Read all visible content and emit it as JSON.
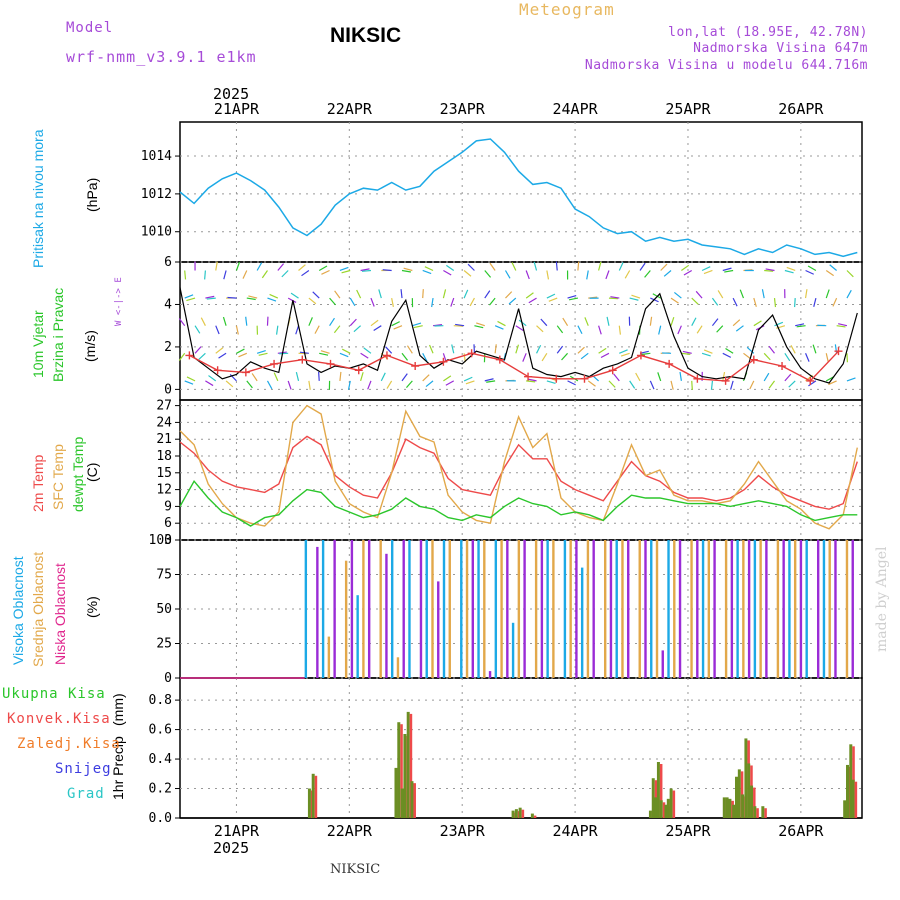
{
  "header": {
    "model_label": "Model",
    "model_name": "wrf-nmm_v3.9.1 e1km",
    "station_title": "NIKSIC",
    "meteogram_label": "Meteogram",
    "lonlat": "lon,lat (18.95E, 42.78N)",
    "altitude": "Nadmorska Visina 647m",
    "model_altitude": "Nadmorska Visina u modelu 644.716m"
  },
  "footer": {
    "station": "NIKSIC",
    "watermark": "made by Angel"
  },
  "chart_data": [
    {
      "type": "line",
      "panel": "pressure",
      "ylabel_main": "Pritisak na nivou mora",
      "unit": "(hPa)",
      "ylim": [
        1008.4,
        1015.8
      ],
      "yticks": [
        1010,
        1012,
        1014
      ],
      "color": "#1ca9e6",
      "x_hours": [
        0,
        3,
        6,
        9,
        12,
        15,
        18,
        21,
        24,
        27,
        30,
        33,
        36,
        39,
        42,
        45,
        48,
        51,
        54,
        57,
        60,
        63,
        66,
        69,
        72,
        75,
        78,
        81,
        84,
        87,
        90,
        93,
        96,
        99,
        102,
        105,
        108,
        111,
        114,
        117,
        120,
        123,
        126,
        129,
        132,
        135,
        138,
        141,
        144
      ],
      "values": [
        1012.1,
        1011.5,
        1012.3,
        1012.8,
        1013.1,
        1012.7,
        1012.2,
        1011.3,
        1010.2,
        1009.8,
        1010.4,
        1011.4,
        1012.0,
        1012.3,
        1012.2,
        1012.6,
        1012.2,
        1012.4,
        1013.2,
        1013.7,
        1014.2,
        1014.8,
        1014.9,
        1014.2,
        1013.2,
        1012.5,
        1012.6,
        1012.3,
        1011.2,
        1010.8,
        1010.2,
        1009.9,
        1010.0,
        1009.5,
        1009.7,
        1009.5,
        1009.6,
        1009.3,
        1009.2,
        1009.1,
        1008.8,
        1009.1,
        1008.9,
        1009.3,
        1009.1,
        1008.8,
        1008.9,
        1008.7,
        1008.9
      ]
    },
    {
      "type": "line",
      "panel": "wind",
      "ylabel_main": "10m Vjetar",
      "ylabel_sub": "Brzina i Pravac",
      "unit": "(m/s)",
      "compass": "W <-|-> E",
      "ylim": [
        -0.5,
        6
      ],
      "yticks": [
        0,
        2,
        4,
        6
      ],
      "series": [
        {
          "color": "#000000",
          "x_hours": [
            0,
            3,
            6,
            9,
            12,
            15,
            18,
            21,
            24,
            27,
            30,
            33,
            36,
            39,
            42,
            45,
            48,
            51,
            54,
            57,
            60,
            63,
            66,
            69,
            72,
            75,
            78,
            81,
            84,
            87,
            90,
            93,
            96,
            99,
            102,
            105,
            108,
            111,
            114,
            117,
            120,
            123,
            126,
            129,
            132,
            135,
            138,
            141,
            144
          ],
          "values": [
            4.8,
            1.5,
            1.0,
            0.5,
            0.7,
            1.3,
            1.0,
            0.8,
            4.2,
            1.2,
            0.8,
            1.1,
            1.0,
            1.2,
            0.9,
            3.2,
            4.2,
            1.6,
            1.0,
            1.4,
            1.2,
            1.8,
            1.6,
            1.4,
            3.8,
            1.0,
            0.7,
            0.6,
            0.8,
            0.6,
            1.0,
            1.2,
            1.5,
            3.8,
            4.5,
            2.5,
            1.0,
            0.6,
            0.5,
            0.6,
            0.5,
            2.8,
            3.5,
            2.0,
            1.0,
            0.5,
            0.3,
            1.2,
            3.6
          ]
        },
        {
          "color": "#e63c3c",
          "x_hours": [
            2,
            8,
            14,
            20,
            26,
            32,
            38,
            44,
            50,
            56,
            62,
            68,
            74,
            80,
            86,
            92,
            98,
            104,
            110,
            116,
            122,
            128,
            134,
            140
          ],
          "values": [
            1.6,
            0.9,
            0.8,
            1.2,
            1.4,
            1.2,
            0.9,
            1.6,
            1.1,
            1.3,
            1.7,
            1.4,
            0.6,
            0.5,
            0.5,
            0.9,
            1.6,
            1.2,
            0.5,
            0.4,
            1.4,
            1.1,
            0.4,
            1.8
          ]
        }
      ]
    },
    {
      "type": "line",
      "panel": "temperature",
      "ylabels": [
        "2m Temp",
        "SFC Temp",
        "dewpt Temp"
      ],
      "unit": "(C)",
      "ylim": [
        3,
        28
      ],
      "yticks": [
        3,
        6,
        9,
        12,
        15,
        18,
        21,
        24,
        27
      ],
      "x_hours": [
        0,
        3,
        6,
        9,
        12,
        15,
        18,
        21,
        24,
        27,
        30,
        33,
        36,
        39,
        42,
        45,
        48,
        51,
        54,
        57,
        60,
        63,
        66,
        69,
        72,
        75,
        78,
        81,
        84,
        87,
        90,
        93,
        96,
        99,
        102,
        105,
        108,
        111,
        114,
        117,
        120,
        123,
        126,
        129,
        132,
        135,
        138,
        141,
        144
      ],
      "series": [
        {
          "name": "2m Temp",
          "color": "#ee4a4a",
          "values": [
            20.5,
            18.5,
            15.5,
            13.5,
            12.5,
            12.0,
            11.5,
            13.0,
            19.5,
            21.5,
            20.0,
            14.5,
            12.5,
            11.0,
            10.5,
            15.0,
            21.0,
            19.5,
            18.5,
            14.0,
            12.0,
            11.5,
            11.0,
            16.0,
            20.0,
            17.5,
            17.5,
            13.5,
            12.0,
            11.0,
            10.0,
            13.5,
            17.0,
            14.5,
            13.5,
            11.5,
            10.5,
            10.5,
            10.0,
            10.5,
            12.0,
            14.5,
            12.5,
            11.0,
            10.0,
            9.0,
            8.5,
            9.5,
            17.0
          ]
        },
        {
          "name": "SFC Temp",
          "color": "#e2a84a",
          "values": [
            22.5,
            20.0,
            13.0,
            9.5,
            7.0,
            6.0,
            5.5,
            8.0,
            24.0,
            27.0,
            25.5,
            13.5,
            9.5,
            8.0,
            7.0,
            15.0,
            26.0,
            21.5,
            20.5,
            11.0,
            8.0,
            6.5,
            6.0,
            17.0,
            25.0,
            19.5,
            22.0,
            10.5,
            8.0,
            7.0,
            6.5,
            13.0,
            20.0,
            14.5,
            15.5,
            11.0,
            10.0,
            10.0,
            9.5,
            10.0,
            13.0,
            17.0,
            13.5,
            10.0,
            8.5,
            6.0,
            5.0,
            7.5,
            19.5
          ]
        },
        {
          "name": "dewpt Temp",
          "color": "#2bc62b",
          "values": [
            9.0,
            13.5,
            10.5,
            8.0,
            7.0,
            5.5,
            7.0,
            7.5,
            10.0,
            12.0,
            11.5,
            9.0,
            8.0,
            7.0,
            7.5,
            8.5,
            10.5,
            9.0,
            8.5,
            7.0,
            6.5,
            7.5,
            7.0,
            9.0,
            10.5,
            9.5,
            9.0,
            7.5,
            8.0,
            7.5,
            6.5,
            9.0,
            11.0,
            10.5,
            10.5,
            10.0,
            9.5,
            9.5,
            9.5,
            9.0,
            9.5,
            10.0,
            9.5,
            9.0,
            7.5,
            6.5,
            7.0,
            7.5,
            7.5
          ]
        }
      ]
    },
    {
      "type": "bar",
      "panel": "cloudiness",
      "ylabels": [
        "Visoka Oblacnost",
        "Srednja Oblacnost",
        "Niska Oblacnost"
      ],
      "unit": "(%)",
      "ylim": [
        0,
        100
      ],
      "yticks": [
        0,
        25,
        50,
        75,
        100
      ],
      "series": [
        {
          "name": "Visoka Oblacnost",
          "color": "#1ca9e6"
        },
        {
          "name": "Srednja Oblacnost",
          "color": "#e2a84a"
        },
        {
          "name": "Niska Oblacnost",
          "color": "#9a2bd6"
        }
      ],
      "cloud_start_hour": 26.5,
      "cloud_values": [
        100,
        0,
        95,
        100,
        30,
        100,
        0,
        85,
        100,
        60,
        100,
        100,
        0,
        100,
        90,
        100,
        15,
        100,
        100,
        0,
        100,
        100,
        100,
        70,
        100,
        100,
        0,
        100,
        100,
        100,
        100,
        100,
        5,
        100,
        100,
        100,
        40,
        100,
        100,
        0,
        100,
        100,
        100,
        100,
        0,
        100,
        100,
        100,
        80,
        100,
        100,
        0,
        100,
        100,
        100,
        100,
        100,
        0,
        100,
        100,
        100,
        100,
        20,
        100,
        100,
        100,
        0,
        100,
        100,
        100,
        100,
        100,
        0,
        100,
        100,
        100,
        100,
        100,
        100,
        100,
        100,
        0,
        100,
        100,
        100,
        100,
        100,
        100,
        0,
        100,
        100,
        100,
        100,
        0,
        100,
        100
      ]
    },
    {
      "type": "bar",
      "panel": "precipitation",
      "ylabel_main": "1hr Precip",
      "unit": "(mm)",
      "ylim": [
        0,
        0.95
      ],
      "yticks": [
        0,
        0.2,
        0.4,
        0.6,
        0.8
      ],
      "legend": [
        {
          "name": "Ukupna Kisa",
          "color": "#2bc62b"
        },
        {
          "name": "Konvek.Kisa",
          "color": "#ee4a4a"
        },
        {
          "name": "Zaledj.Kisa",
          "color": "#f07d2a"
        },
        {
          "name": "Snijeg",
          "color": "#3d3de0"
        },
        {
          "name": "Grad",
          "color": "#2ac6c6"
        }
      ],
      "bars": [
        [
          27.2,
          0.2
        ],
        [
          28.0,
          0.3
        ],
        [
          45.6,
          0.34
        ],
        [
          46.2,
          0.65
        ],
        [
          46.9,
          0.2
        ],
        [
          47.5,
          0.57
        ],
        [
          48.2,
          0.72
        ],
        [
          49.0,
          0.25
        ],
        [
          70.5,
          0.05
        ],
        [
          71.2,
          0.06
        ],
        [
          72.0,
          0.07
        ],
        [
          74.6,
          0.03
        ],
        [
          99.7,
          0.05
        ],
        [
          100.3,
          0.27
        ],
        [
          100.8,
          0.14
        ],
        [
          101.4,
          0.38
        ],
        [
          102.0,
          0.12
        ],
        [
          103.0,
          0.09
        ],
        [
          103.5,
          0.13
        ],
        [
          104.1,
          0.2
        ],
        [
          115.4,
          0.14
        ],
        [
          116.0,
          0.14
        ],
        [
          116.6,
          0.13
        ],
        [
          117.4,
          0.09
        ],
        [
          118.0,
          0.28
        ],
        [
          118.6,
          0.33
        ],
        [
          119.3,
          0.16
        ],
        [
          120.0,
          0.54
        ],
        [
          120.6,
          0.37
        ],
        [
          121.2,
          0.22
        ],
        [
          121.9,
          0.08
        ],
        [
          123.6,
          0.08
        ],
        [
          141.0,
          0.12
        ],
        [
          141.6,
          0.36
        ],
        [
          142.3,
          0.5
        ],
        [
          142.8,
          0.26
        ]
      ]
    }
  ],
  "time_axis": {
    "year": "2025",
    "day_labels": [
      "21APR",
      "22APR",
      "23APR",
      "24APR",
      "25APR",
      "26APR"
    ],
    "day_hours": [
      12,
      36,
      60,
      84,
      108,
      132
    ]
  }
}
